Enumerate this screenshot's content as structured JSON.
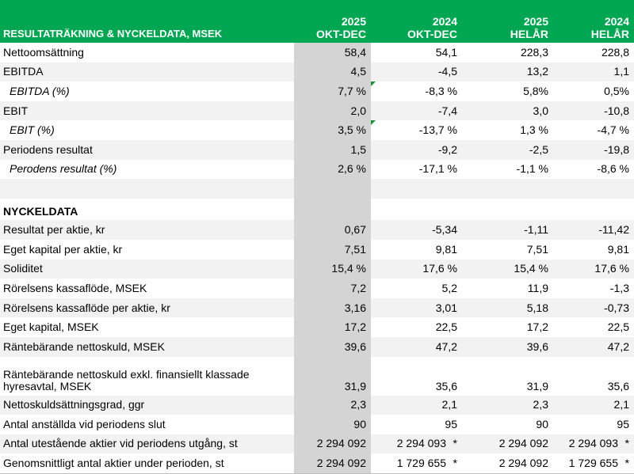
{
  "header": {
    "title": "RESULTATRÄKNING & NYCKELDATA, MSEK",
    "columns": [
      {
        "year": "2025",
        "period": "OKT-DEC"
      },
      {
        "year": "2024",
        "period": "OKT-DEC"
      },
      {
        "year": "2025",
        "period": "HELÅR"
      },
      {
        "year": "2024",
        "period": "HELÅR"
      }
    ]
  },
  "rows": [
    {
      "label": "Nettoomsättning",
      "values": [
        "58,4",
        "54,1",
        "228,3",
        "228,8"
      ]
    },
    {
      "label": "EBITDA",
      "values": [
        "4,5",
        "-4,5",
        "13,2",
        "1,1"
      ]
    },
    {
      "label": "EBITDA (%)",
      "values": [
        "7,7 %",
        "-8,3 %",
        "5,8%",
        "0,5%"
      ]
    },
    {
      "label": "EBIT",
      "values": [
        "2,0",
        "-7,4",
        "3,0",
        "-10,8"
      ]
    },
    {
      "label": "EBIT (%)",
      "values": [
        "3,5 %",
        "-13,7 %",
        "1,3 %",
        "-4,7 %"
      ]
    },
    {
      "label": "Periodens resultat",
      "values": [
        "1,5",
        "-9,2",
        "-2,5",
        "-19,8"
      ]
    },
    {
      "label": "Perodens resultat (%)",
      "values": [
        "2,6 %",
        "-17,1 %",
        "-1,1 %",
        "-8,6 %"
      ]
    },
    {
      "label": "NYCKELDATA"
    },
    {
      "label": "Resultat per aktie, kr",
      "values": [
        "0,67",
        "-5,34",
        "-1,11",
        "-11,42"
      ]
    },
    {
      "label": "Eget kapital per aktie, kr",
      "values": [
        "7,51",
        "9,81",
        "7,51",
        "9,81"
      ]
    },
    {
      "label": "Soliditet",
      "values": [
        "15,4 %",
        "17,6 %",
        "15,4 %",
        "17,6 %"
      ]
    },
    {
      "label": "Rörelsens kassaflöde, MSEK",
      "values": [
        "7,2",
        "5,2",
        "11,9",
        "-1,3"
      ]
    },
    {
      "label": "Rörelsens kassaflöde per aktie, kr",
      "values": [
        "3,16",
        "3,01",
        "5,18",
        "-0,73"
      ]
    },
    {
      "label": "Eget kapital, MSEK",
      "values": [
        "17,2",
        "22,5",
        "17,2",
        "22,5"
      ]
    },
    {
      "label": "Räntebärande nettoskuld, MSEK",
      "values": [
        "39,6",
        "47,2",
        "39,6",
        "47,2"
      ]
    },
    {
      "label": "Räntebärande nettoskuld exkl. finansiellt klassade hyresavtal, MSEK",
      "values": [
        "31,9",
        "35,6",
        "31,9",
        "35,6"
      ]
    },
    {
      "label": "Nettoskuldsättningsgrad, ggr",
      "values": [
        "2,3",
        "2,1",
        "2,3",
        "2,1"
      ]
    },
    {
      "label": "Antal anställda vid periodens slut",
      "values": [
        "90",
        "95",
        "90",
        "95"
      ]
    },
    {
      "label": "Antal utestående aktier vid periodens utgång, st",
      "values": [
        "2 294 092",
        "2 294 093",
        "2 294 092",
        "2 294 093"
      ],
      "note": "*"
    },
    {
      "label": "Genomsnittligt antal aktier under perioden, st",
      "values": [
        "2 294 092",
        "1 729 655",
        "2 294 092",
        "1 729 655"
      ],
      "note": "*"
    }
  ]
}
